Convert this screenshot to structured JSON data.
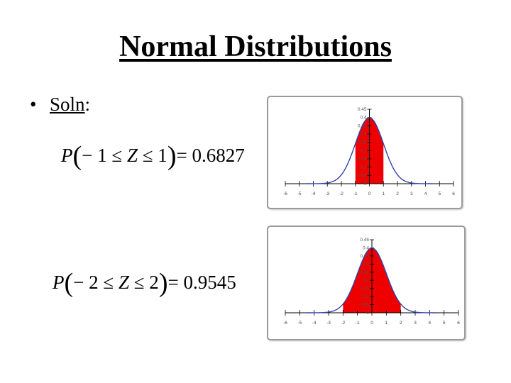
{
  "slide": {
    "title": "Normal Distributions",
    "bullet": "•",
    "soln_word": "Soln",
    "soln_colon": ":"
  },
  "equations": [
    {
      "prefix": "P",
      "open": "(",
      "middle_pre": "− 1 ≤ ",
      "var": "Z",
      "middle_post": " ≤ 1",
      "close": ")",
      "result": "= 0.6827"
    },
    {
      "prefix": "P",
      "open": "(",
      "middle_pre": "− 2 ≤ ",
      "var": "Z",
      "middle_post": " ≤ 2",
      "close": ")",
      "result": "= 0.9545"
    }
  ],
  "chart_data": [
    {
      "type": "area",
      "title": "",
      "xlabel": "",
      "ylabel": "",
      "xlim": [
        -6,
        6
      ],
      "ylim": [
        0,
        0.45
      ],
      "x_ticks": [
        "-6",
        "-5",
        "-4",
        "-3",
        "-2",
        "-1",
        "0",
        "1",
        "2",
        "3",
        "4",
        "5",
        "6"
      ],
      "y_ticks": [
        "0",
        "0.05",
        "0.1",
        "0.15",
        "0.2",
        "0.25",
        "0.3",
        "0.35",
        "0.4",
        "0.45"
      ],
      "curve": "standard normal density",
      "shaded_range": [
        -1,
        1
      ],
      "shaded_probability": 0.6827,
      "curve_color": "#3344aa",
      "fill_color": "#ee0000",
      "grid": false
    },
    {
      "type": "area",
      "title": "",
      "xlabel": "",
      "ylabel": "",
      "xlim": [
        -6,
        6
      ],
      "ylim": [
        0,
        0.45
      ],
      "x_ticks": [
        "-6",
        "-5",
        "-4",
        "-3",
        "-2",
        "-1",
        "0",
        "1",
        "2",
        "3",
        "4",
        "5",
        "6"
      ],
      "y_ticks": [
        "0",
        "0.05",
        "0.1",
        "0.15",
        "0.2",
        "0.25",
        "0.3",
        "0.35",
        "0.4",
        "0.45"
      ],
      "curve": "standard normal density",
      "shaded_range": [
        -2,
        2
      ],
      "shaded_probability": 0.9545,
      "curve_color": "#3344aa",
      "fill_color": "#ee0000",
      "grid": false
    }
  ]
}
